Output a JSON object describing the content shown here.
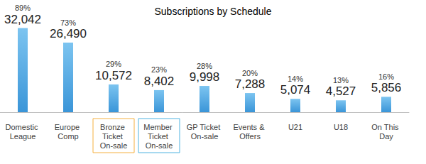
{
  "chart_data": {
    "type": "bar",
    "title": "Subscriptions by Schedule",
    "categories": [
      "Domestic League",
      "Europe Comp",
      "Bronze Ticket On-sale",
      "Member Ticket On-sale",
      "GP Ticket On-sale",
      "Events & Offers",
      "U21",
      "U18",
      "On This Day"
    ],
    "values": [
      32042,
      26490,
      10572,
      8402,
      9998,
      7288,
      5074,
      4527,
      5856
    ],
    "value_labels": [
      "32,042",
      "26,490",
      "10,572",
      "8,402",
      "9,998",
      "7,288",
      "5,074",
      "4,527",
      "5,856"
    ],
    "share_labels": [
      "89%",
      "73%",
      "29%",
      "23%",
      "28%",
      "20%",
      "14%",
      "13%",
      "16%"
    ],
    "color": "#3a95d8",
    "ylim": [
      0,
      33000
    ],
    "yticks": [
      0,
      33000
    ],
    "grid": false,
    "data_labels": true,
    "tick_labels": "x"
  }
}
